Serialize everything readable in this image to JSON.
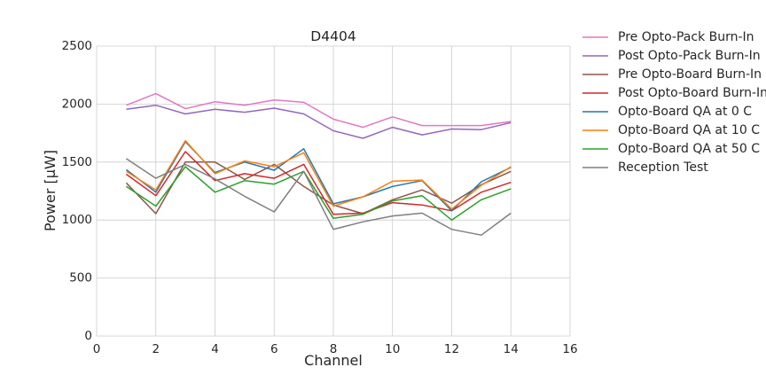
{
  "chart_data": {
    "type": "line",
    "title": "D4404",
    "xlabel": "Channel",
    "ylabel": "Power [μW]",
    "xlim": [
      0,
      16
    ],
    "ylim": [
      0,
      2500
    ],
    "xticks": [
      0,
      2,
      4,
      6,
      8,
      10,
      12,
      14,
      16
    ],
    "yticks": [
      0,
      500,
      1000,
      1500,
      2000,
      2500
    ],
    "grid": true,
    "legend_position": "outside-right",
    "x": [
      1,
      2,
      3,
      4,
      5,
      6,
      7,
      8,
      9,
      10,
      11,
      12,
      13,
      14
    ],
    "series": [
      {
        "name": "Pre Opto-Pack Burn-In",
        "color": "#e377c2",
        "values": [
          1990,
          2090,
          1960,
          2020,
          1990,
          2035,
          2015,
          1870,
          1800,
          1890,
          1815,
          1815,
          1815,
          1850
        ]
      },
      {
        "name": "Post Opto-Pack Burn-In",
        "color": "#9467bd",
        "values": [
          1955,
          1990,
          1915,
          1955,
          1930,
          1965,
          1915,
          1770,
          1705,
          1800,
          1735,
          1785,
          1780,
          1840
        ]
      },
      {
        "name": "Pre Opto-Board Burn-In",
        "color": "#8c564b",
        "values": [
          1320,
          1055,
          1500,
          1500,
          1350,
          1480,
          1290,
          1130,
          1055,
          1175,
          1260,
          1145,
          1305,
          1420
        ]
      },
      {
        "name": "Post Opto-Board Burn-In",
        "color": "#d62728",
        "values": [
          1395,
          1210,
          1590,
          1340,
          1400,
          1360,
          1480,
          1050,
          1060,
          1150,
          1130,
          1080,
          1240,
          1325
        ]
      },
      {
        "name": "Opto-Board QA at 0 C",
        "color": "#1f77b4",
        "values": [
          1435,
          1240,
          1675,
          1410,
          1500,
          1430,
          1615,
          1140,
          1200,
          1290,
          1340,
          1080,
          1330,
          1455
        ]
      },
      {
        "name": "Opto-Board QA at 10 C",
        "color": "#ff7f0e",
        "values": [
          1420,
          1260,
          1685,
          1400,
          1510,
          1460,
          1580,
          1120,
          1200,
          1335,
          1345,
          1095,
          1300,
          1460
        ]
      },
      {
        "name": "Opto-Board QA at 50 C",
        "color": "#2ca02c",
        "values": [
          1290,
          1120,
          1460,
          1240,
          1340,
          1310,
          1420,
          1015,
          1050,
          1165,
          1210,
          1000,
          1175,
          1270
        ]
      },
      {
        "name": "Reception Test",
        "color": "#7f7f7f",
        "values": [
          1530,
          1360,
          1480,
          1355,
          1205,
          1070,
          1420,
          920,
          985,
          1035,
          1060,
          920,
          870,
          1060
        ]
      }
    ]
  }
}
